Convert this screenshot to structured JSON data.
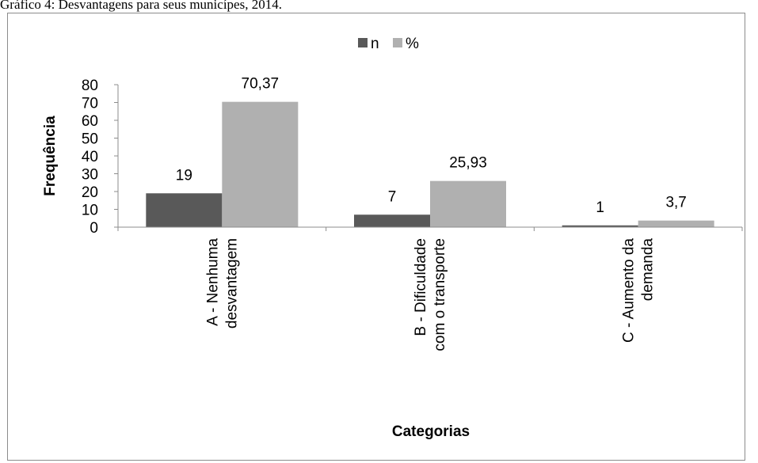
{
  "caption": "Gráfico 4: Desvantagens para seus municípes, 2014.",
  "chart_data": {
    "type": "bar",
    "title": "",
    "xlabel": "Categorias",
    "ylabel": "Frequência",
    "ylim": [
      0,
      80
    ],
    "yticks": [
      "0",
      "10",
      "20",
      "30",
      "40",
      "50",
      "60",
      "70",
      "80"
    ],
    "categories": [
      [
        "A - Nenhuma",
        "desvantagem"
      ],
      [
        "B - Dificuldade",
        "com o transporte"
      ],
      [
        "C - Aumento da",
        "demanda"
      ]
    ],
    "series": [
      {
        "name": "n",
        "color": "#595959",
        "values": [
          19,
          7,
          1
        ],
        "labels": [
          "19",
          "7",
          "1"
        ]
      },
      {
        "name": "%",
        "color": "#b0b0b0",
        "values": [
          70.37,
          25.93,
          3.7
        ],
        "labels": [
          "70,37",
          "25,93",
          "3,7"
        ]
      }
    ],
    "legend": "top-center",
    "grid": false
  }
}
